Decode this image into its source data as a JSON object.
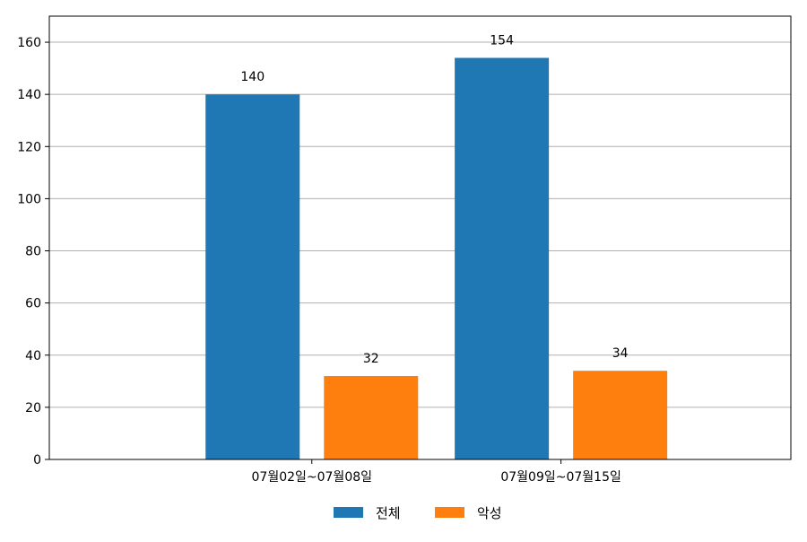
{
  "chart_data": {
    "type": "bar",
    "categories": [
      "07월02일~07월08일",
      "07월09일~07월15일"
    ],
    "series": [
      {
        "name": "전체",
        "values": [
          140,
          154
        ],
        "color": "#1f77b4"
      },
      {
        "name": "악성",
        "values": [
          32,
          34
        ],
        "color": "#ff7f0e"
      }
    ],
    "ylim": [
      0,
      170
    ],
    "yticks": [
      0,
      20,
      40,
      60,
      80,
      100,
      120,
      140,
      160
    ],
    "grid": true,
    "legend_position": "bottom-center"
  }
}
